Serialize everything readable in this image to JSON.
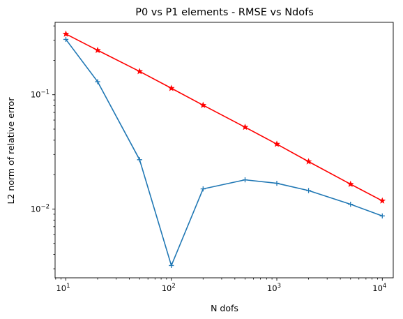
{
  "chart_data": {
    "type": "line",
    "title": "P0 vs P1 elements - RMSE vs Ndofs",
    "xlabel": "N dofs",
    "ylabel": "L2 norm of relative error",
    "xscale": "log",
    "yscale": "log",
    "xlim": [
      7.9,
      12700
    ],
    "ylim": [
      0.0025,
      0.43
    ],
    "grid": false,
    "x_ticks": [
      {
        "base": "10",
        "exp": "1",
        "value": 10
      },
      {
        "base": "10",
        "exp": "2",
        "value": 100
      },
      {
        "base": "10",
        "exp": "3",
        "value": 1000
      },
      {
        "base": "10",
        "exp": "4",
        "value": 10000
      }
    ],
    "y_ticks": [
      {
        "base": "10",
        "exp": "−2",
        "value": 0.01
      },
      {
        "base": "10",
        "exp": "−1",
        "value": 0.1
      }
    ],
    "x": [
      10,
      20,
      50,
      100,
      200,
      500,
      1000,
      2000,
      5000,
      10000
    ],
    "series": [
      {
        "color": "#ff0000",
        "marker": "star",
        "values": [
          0.34,
          0.245,
          0.16,
          0.114,
          0.081,
          0.052,
          0.037,
          0.026,
          0.0165,
          0.0118
        ]
      },
      {
        "color": "#1f77b4",
        "marker": "plus",
        "values": [
          0.305,
          0.13,
          0.027,
          0.0032,
          0.015,
          0.018,
          0.0168,
          0.0145,
          0.011,
          0.0087
        ]
      }
    ]
  }
}
